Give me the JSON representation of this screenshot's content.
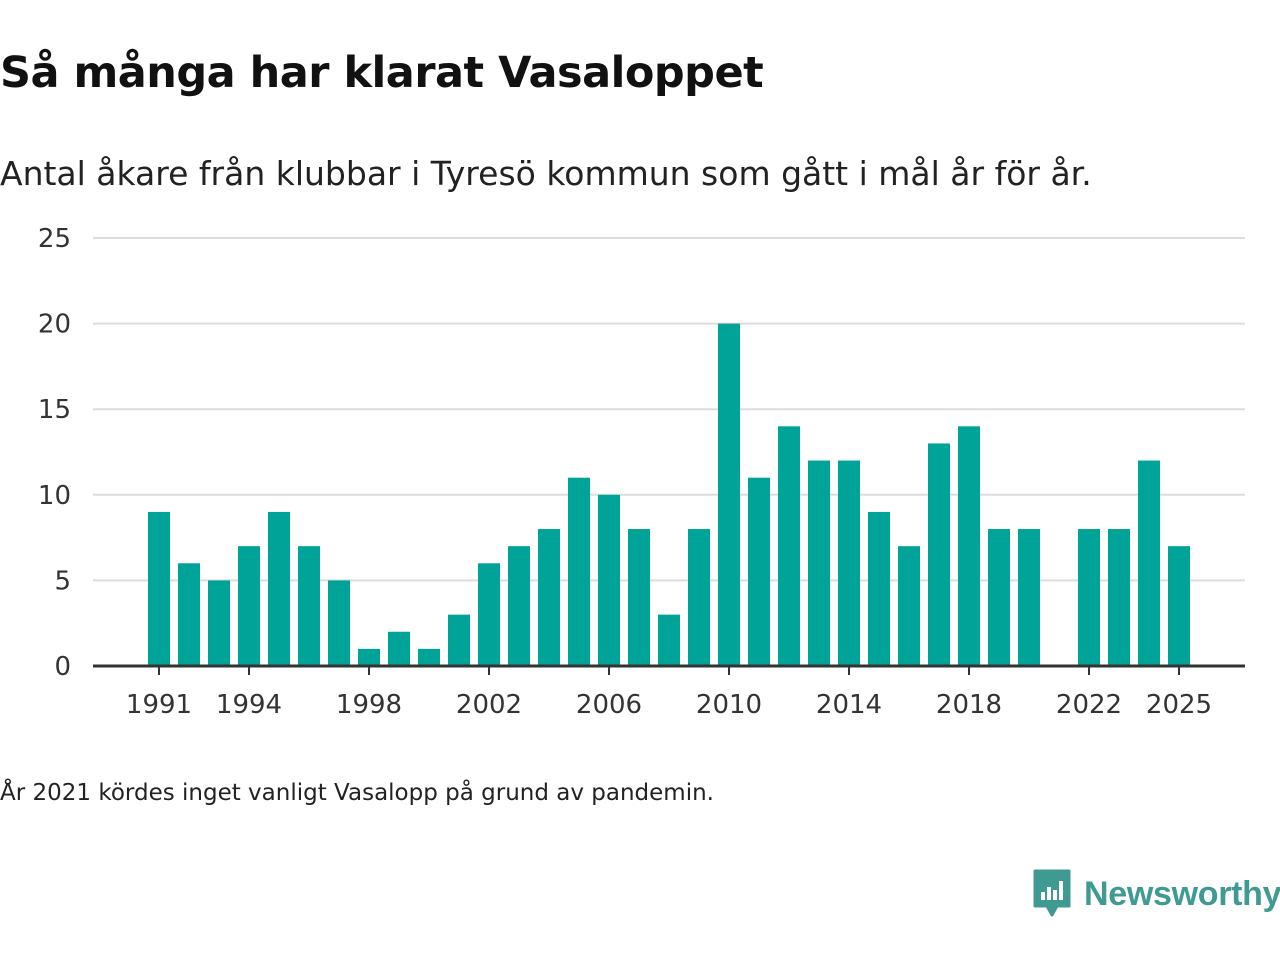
{
  "header": {
    "title": "Så många har klarat Vasaloppet",
    "subtitle": "Antal åkare från klubbar i Tyresö kommun som gått i mål år för år."
  },
  "footnote": "År 2021 kördes inget vanligt Vasalopp på grund av pandemin.",
  "brand": {
    "name": "Newsworthy",
    "icon": "newsworthy-logo-icon",
    "color": "#3f9a92"
  },
  "colors": {
    "bar": "#00a398",
    "grid": "#dddddd",
    "axis": "#333333"
  },
  "chart_data": {
    "type": "bar",
    "title": "Så många har klarat Vasaloppet",
    "subtitle": "Antal åkare från klubbar i Tyresö kommun som gått i mål år för år.",
    "xlabel": "",
    "ylabel": "",
    "ylim": [
      0,
      25
    ],
    "y_ticks": [
      0,
      5,
      10,
      15,
      20,
      25
    ],
    "x_tick_labels": [
      "1991",
      "1994",
      "1998",
      "2002",
      "2006",
      "2010",
      "2014",
      "2018",
      "2022",
      "2025"
    ],
    "grid": true,
    "categories": [
      1991,
      1992,
      1993,
      1994,
      1995,
      1996,
      1997,
      1998,
      1999,
      2000,
      2001,
      2002,
      2003,
      2004,
      2005,
      2006,
      2007,
      2008,
      2009,
      2010,
      2011,
      2012,
      2013,
      2014,
      2015,
      2016,
      2017,
      2018,
      2019,
      2020,
      2021,
      2022,
      2023,
      2024,
      2025
    ],
    "values": [
      9,
      6,
      5,
      7,
      9,
      7,
      5,
      1,
      2,
      1,
      3,
      6,
      7,
      8,
      11,
      10,
      8,
      3,
      8,
      20,
      11,
      14,
      12,
      12,
      9,
      7,
      13,
      14,
      8,
      8,
      null,
      8,
      8,
      12,
      7
    ]
  }
}
